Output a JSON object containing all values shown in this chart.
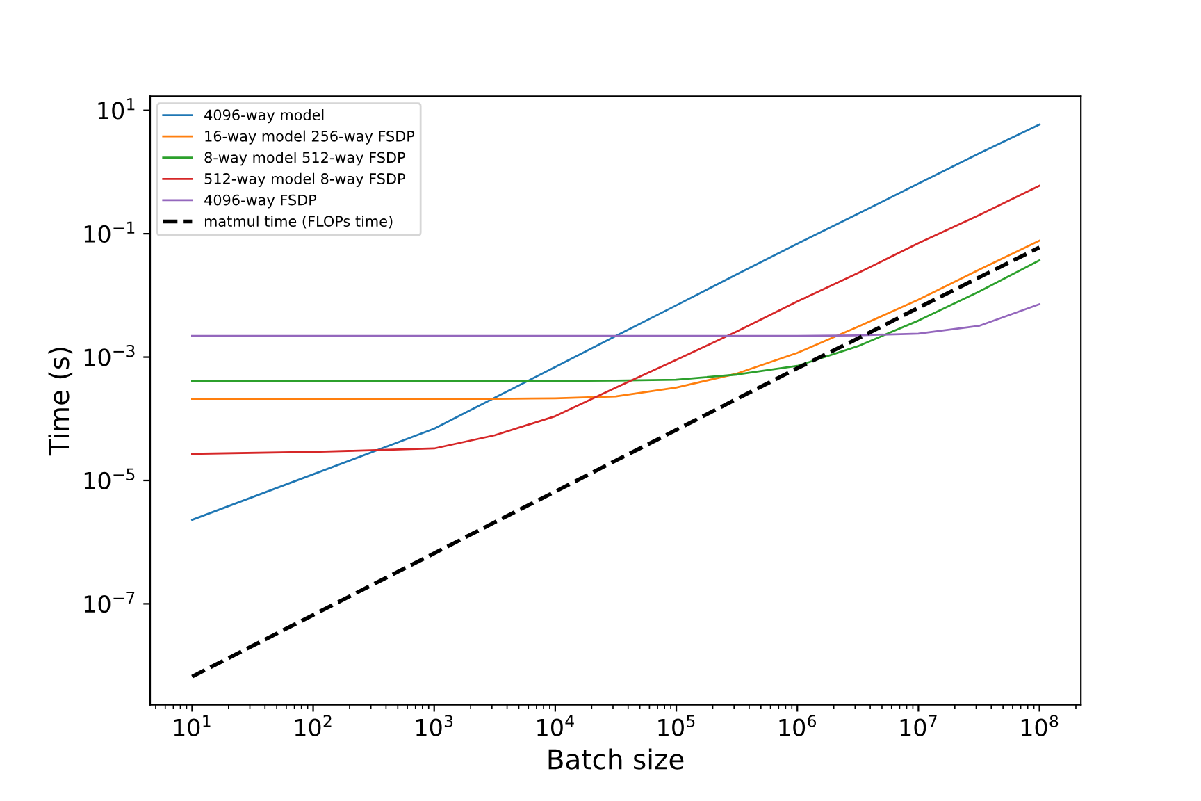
{
  "chart_data": {
    "type": "line",
    "xlabel": "Batch size",
    "ylabel": "Time (s)",
    "log": "xy",
    "legend": "top left",
    "grid": false,
    "xlim": [
      4.5,
      220000000.0
    ],
    "ylim": [
      2.3e-09,
      17
    ],
    "xticks": [
      {
        "value": 10,
        "label": "10$^{1}$"
      },
      {
        "value": 100,
        "label": "10$^{2}$"
      },
      {
        "value": 1000,
        "label": "10$^{3}$"
      },
      {
        "value": 10000,
        "label": "10$^{4}$"
      },
      {
        "value": 100000,
        "label": "10$^{5}$"
      },
      {
        "value": 1000000,
        "label": "10$^{6}$"
      },
      {
        "value": 10000000,
        "label": "10$^{7}$"
      },
      {
        "value": 100000000,
        "label": "10$^{8}$"
      }
    ],
    "yticks": [
      {
        "value": 1e-07,
        "label": "10$^{−7}$"
      },
      {
        "value": 1e-05,
        "label": "10$^{−5}$"
      },
      {
        "value": 0.001,
        "label": "10$^{−3}$"
      },
      {
        "value": 0.1,
        "label": "10$^{−1}$"
      },
      {
        "value": 10,
        "label": "10$^{1}$"
      }
    ],
    "x": [
      10,
      100,
      1000,
      3162,
      10000,
      31623,
      100000,
      316228,
      1000000,
      3162278,
      10000000,
      31622777,
      100000000
    ],
    "series": [
      {
        "name": "4096-way model",
        "color": "#1f77b4",
        "line_style": "solid",
        "values": [
          2.3e-06,
          1.26e-05,
          6.9e-05,
          0.00022,
          0.00069,
          0.0022,
          0.0069,
          0.022,
          0.069,
          0.21,
          0.65,
          2.0,
          5.9
        ]
      },
      {
        "name": "16-way model 256-way FSDP",
        "color": "#ff7f0e",
        "line_style": "solid",
        "values": [
          0.00021,
          0.00021,
          0.00021,
          0.00021,
          0.000215,
          0.00023,
          0.00032,
          0.00054,
          0.00117,
          0.0031,
          0.0085,
          0.026,
          0.077
        ]
      },
      {
        "name": "8-way model 512-way FSDP",
        "color": "#2ca02c",
        "line_style": "solid",
        "values": [
          0.00041,
          0.00041,
          0.00041,
          0.00041,
          0.00041,
          0.000415,
          0.00043,
          0.00052,
          0.00072,
          0.0015,
          0.0039,
          0.0115,
          0.037
        ]
      },
      {
        "name": "512-way model 8-way FSDP",
        "color": "#d62728",
        "line_style": "solid",
        "values": [
          2.7e-05,
          2.9e-05,
          3.3e-05,
          5.4e-05,
          0.00011,
          0.00032,
          0.0009,
          0.0026,
          0.008,
          0.023,
          0.07,
          0.2,
          0.6
        ]
      },
      {
        "name": "4096-way FSDP",
        "color": "#9467bd",
        "line_style": "solid",
        "values": [
          0.0022,
          0.0022,
          0.0022,
          0.0022,
          0.0022,
          0.0022,
          0.0022,
          0.0022,
          0.0022,
          0.00225,
          0.0024,
          0.0032,
          0.0072
        ]
      },
      {
        "name": "matmul time (FLOPs time)",
        "color": "#000000",
        "line_style": "dashed",
        "values": [
          6.6e-09,
          6.6e-08,
          6.6e-07,
          2.1e-06,
          6.6e-06,
          2.1e-05,
          6.6e-05,
          0.00021,
          0.00066,
          0.002,
          0.0063,
          0.0195,
          0.06
        ]
      }
    ]
  }
}
